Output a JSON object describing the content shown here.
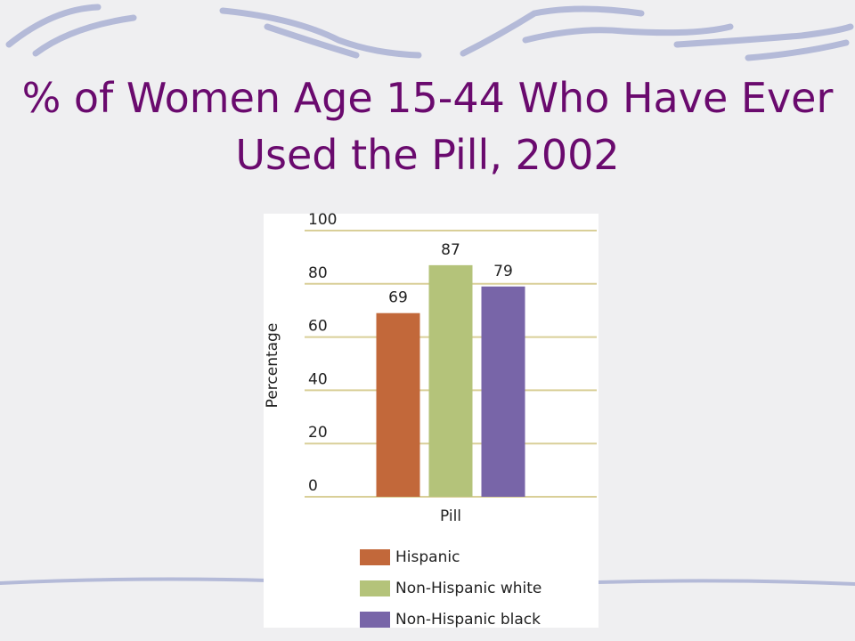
{
  "chart_data": {
    "type": "bar",
    "title": "% of Women Age 15-44 Who Have Ever Used the Pill, 2002",
    "categories": [
      "Pill"
    ],
    "series": [
      {
        "name": "Hispanic",
        "color": "#c2683a",
        "values": [
          69
        ]
      },
      {
        "name": "Non-Hispanic white",
        "color": "#b4c37a",
        "values": [
          87
        ]
      },
      {
        "name": "Non-Hispanic black",
        "color": "#7865a8",
        "values": [
          79
        ]
      }
    ],
    "y_label": "Percentage",
    "ylim": [
      0,
      100
    ],
    "yticks": [
      0,
      20,
      40,
      60,
      80,
      100
    ],
    "grid": true
  }
}
